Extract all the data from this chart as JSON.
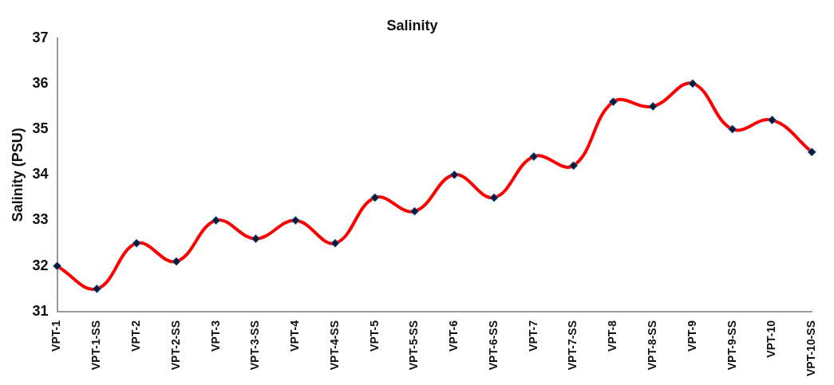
{
  "chart_data": {
    "type": "line",
    "title": "Salinity",
    "ylabel": "Salinity (PSU)",
    "categories": [
      "VPT-1",
      "VPT-1-SS",
      "VPT-2",
      "VPT-2-SS",
      "VPT-3",
      "VPT-3-SS",
      "VPT-4",
      "VPT-4-SS",
      "VPT-5",
      "VPT-5-SS",
      "VPT-6",
      "VPT-6-SS",
      "VPT-7",
      "VPT-7-SS",
      "VPT-8",
      "VPT-8-SS",
      "VPT-9",
      "VPT-9-SS",
      "VPT-10",
      "VPT-10-SS"
    ],
    "series": [
      {
        "color": "#ff0000",
        "values": [
          32,
          31.5,
          32.5,
          32.1,
          33,
          32.6,
          33,
          32.5,
          33.5,
          33.2,
          34,
          33.5,
          34.4,
          34.2,
          35.6,
          35.5,
          36,
          35,
          35.2,
          34.5
        ]
      }
    ],
    "ylim": [
      31,
      37
    ],
    "yticks": [
      31,
      32,
      33,
      34,
      35,
      36,
      37
    ],
    "grid": false,
    "legend": false,
    "marker": "diamond",
    "line_style": "solid"
  }
}
